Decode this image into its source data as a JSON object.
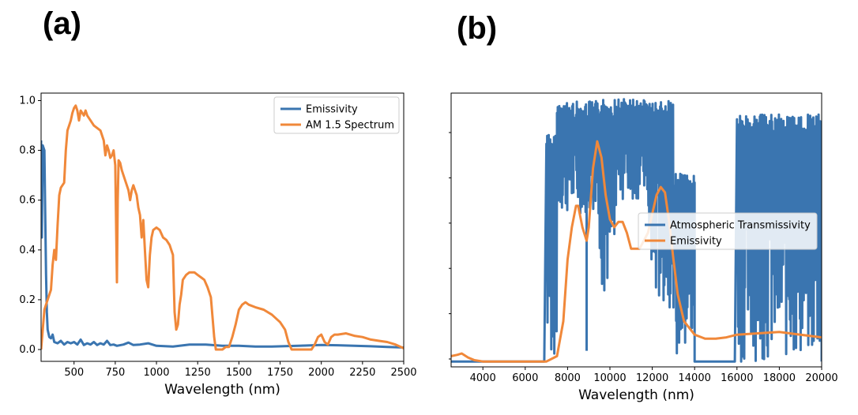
{
  "panels": {
    "a": {
      "label": "(a)"
    },
    "b": {
      "label": "(b)"
    }
  },
  "chart_data": [
    {
      "id": "a",
      "type": "line",
      "xlabel": "Wavelength (nm)",
      "ylabel": "",
      "xlim": [
        300,
        2500
      ],
      "ylim": [
        0,
        1.0
      ],
      "xticks": [
        500,
        750,
        1000,
        1250,
        1500,
        1750,
        2000,
        2250,
        2500
      ],
      "yticks": [
        0.0,
        0.2,
        0.4,
        0.6,
        0.8,
        1.0
      ],
      "xtick_labels": [
        "500",
        "750",
        "1000",
        "1250",
        "1500",
        "1750",
        "2000",
        "2250",
        "2500"
      ],
      "ytick_labels": [
        "0.0",
        "0.2",
        "0.4",
        "0.6",
        "0.8",
        "1.0"
      ],
      "legend_position": "top-right",
      "grid": false,
      "series": [
        {
          "name": "Emissivity",
          "color": "#3a75b0",
          "points": [
            [
              300,
              0.84
            ],
            [
              305,
              0.45
            ],
            [
              310,
              0.82
            ],
            [
              320,
              0.8
            ],
            [
              325,
              0.55
            ],
            [
              330,
              0.3
            ],
            [
              335,
              0.15
            ],
            [
              340,
              0.08
            ],
            [
              350,
              0.05
            ],
            [
              360,
              0.045
            ],
            [
              370,
              0.06
            ],
            [
              380,
              0.03
            ],
            [
              400,
              0.025
            ],
            [
              420,
              0.035
            ],
            [
              440,
              0.02
            ],
            [
              460,
              0.03
            ],
            [
              480,
              0.025
            ],
            [
              500,
              0.03
            ],
            [
              520,
              0.02
            ],
            [
              540,
              0.04
            ],
            [
              560,
              0.018
            ],
            [
              580,
              0.025
            ],
            [
              600,
              0.02
            ],
            [
              620,
              0.03
            ],
            [
              640,
              0.018
            ],
            [
              660,
              0.025
            ],
            [
              680,
              0.02
            ],
            [
              700,
              0.035
            ],
            [
              720,
              0.018
            ],
            [
              740,
              0.02
            ],
            [
              760,
              0.015
            ],
            [
              800,
              0.02
            ],
            [
              830,
              0.028
            ],
            [
              860,
              0.018
            ],
            [
              900,
              0.02
            ],
            [
              950,
              0.025
            ],
            [
              1000,
              0.015
            ],
            [
              1100,
              0.012
            ],
            [
              1200,
              0.02
            ],
            [
              1300,
              0.02
            ],
            [
              1400,
              0.015
            ],
            [
              1500,
              0.015
            ],
            [
              1600,
              0.012
            ],
            [
              1700,
              0.012
            ],
            [
              1800,
              0.014
            ],
            [
              1900,
              0.016
            ],
            [
              2000,
              0.018
            ],
            [
              2100,
              0.017
            ],
            [
              2200,
              0.015
            ],
            [
              2300,
              0.013
            ],
            [
              2400,
              0.01
            ],
            [
              2500,
              0.008
            ]
          ]
        },
        {
          "name": "AM 1.5 Spectrum",
          "color": "#f0883a",
          "points": [
            [
              300,
              0.0
            ],
            [
              310,
              0.08
            ],
            [
              320,
              0.16
            ],
            [
              340,
              0.2
            ],
            [
              360,
              0.24
            ],
            [
              370,
              0.34
            ],
            [
              380,
              0.4
            ],
            [
              390,
              0.36
            ],
            [
              400,
              0.5
            ],
            [
              410,
              0.62
            ],
            [
              420,
              0.65
            ],
            [
              440,
              0.67
            ],
            [
              450,
              0.8
            ],
            [
              460,
              0.88
            ],
            [
              470,
              0.9
            ],
            [
              480,
              0.92
            ],
            [
              490,
              0.95
            ],
            [
              500,
              0.97
            ],
            [
              510,
              0.98
            ],
            [
              520,
              0.96
            ],
            [
              530,
              0.92
            ],
            [
              540,
              0.96
            ],
            [
              550,
              0.95
            ],
            [
              560,
              0.94
            ],
            [
              570,
              0.96
            ],
            [
              580,
              0.94
            ],
            [
              600,
              0.92
            ],
            [
              620,
              0.9
            ],
            [
              640,
              0.89
            ],
            [
              660,
              0.88
            ],
            [
              680,
              0.84
            ],
            [
              690,
              0.78
            ],
            [
              700,
              0.82
            ],
            [
              710,
              0.8
            ],
            [
              720,
              0.77
            ],
            [
              730,
              0.78
            ],
            [
              740,
              0.8
            ],
            [
              750,
              0.74
            ],
            [
              760,
              0.27
            ],
            [
              765,
              0.6
            ],
            [
              770,
              0.76
            ],
            [
              780,
              0.75
            ],
            [
              790,
              0.72
            ],
            [
              800,
              0.7
            ],
            [
              820,
              0.66
            ],
            [
              830,
              0.64
            ],
            [
              840,
              0.6
            ],
            [
              850,
              0.64
            ],
            [
              860,
              0.66
            ],
            [
              870,
              0.64
            ],
            [
              880,
              0.62
            ],
            [
              890,
              0.57
            ],
            [
              900,
              0.54
            ],
            [
              910,
              0.45
            ],
            [
              920,
              0.52
            ],
            [
              930,
              0.4
            ],
            [
              940,
              0.28
            ],
            [
              950,
              0.25
            ],
            [
              960,
              0.38
            ],
            [
              970,
              0.45
            ],
            [
              980,
              0.48
            ],
            [
              1000,
              0.49
            ],
            [
              1020,
              0.48
            ],
            [
              1040,
              0.45
            ],
            [
              1060,
              0.44
            ],
            [
              1080,
              0.42
            ],
            [
              1100,
              0.38
            ],
            [
              1110,
              0.15
            ],
            [
              1120,
              0.08
            ],
            [
              1130,
              0.1
            ],
            [
              1140,
              0.18
            ],
            [
              1150,
              0.22
            ],
            [
              1160,
              0.28
            ],
            [
              1180,
              0.3
            ],
            [
              1200,
              0.31
            ],
            [
              1230,
              0.31
            ],
            [
              1250,
              0.3
            ],
            [
              1270,
              0.29
            ],
            [
              1290,
              0.28
            ],
            [
              1310,
              0.25
            ],
            [
              1330,
              0.21
            ],
            [
              1350,
              0.05
            ],
            [
              1360,
              0.0
            ],
            [
              1400,
              0.0
            ],
            [
              1420,
              0.01
            ],
            [
              1440,
              0.01
            ],
            [
              1460,
              0.05
            ],
            [
              1480,
              0.1
            ],
            [
              1500,
              0.16
            ],
            [
              1520,
              0.18
            ],
            [
              1540,
              0.19
            ],
            [
              1560,
              0.18
            ],
            [
              1600,
              0.17
            ],
            [
              1650,
              0.16
            ],
            [
              1700,
              0.14
            ],
            [
              1750,
              0.11
            ],
            [
              1780,
              0.08
            ],
            [
              1800,
              0.03
            ],
            [
              1820,
              0.0
            ],
            [
              1940,
              0.0
            ],
            [
              1960,
              0.02
            ],
            [
              1980,
              0.05
            ],
            [
              2000,
              0.06
            ],
            [
              2020,
              0.03
            ],
            [
              2040,
              0.02
            ],
            [
              2060,
              0.05
            ],
            [
              2080,
              0.06
            ],
            [
              2100,
              0.06
            ],
            [
              2150,
              0.065
            ],
            [
              2200,
              0.055
            ],
            [
              2250,
              0.05
            ],
            [
              2300,
              0.04
            ],
            [
              2350,
              0.035
            ],
            [
              2400,
              0.03
            ],
            [
              2450,
              0.02
            ],
            [
              2500,
              0.005
            ]
          ]
        }
      ]
    },
    {
      "id": "b",
      "type": "line",
      "xlabel": "Wavelength (nm)",
      "ylabel": "",
      "xlim": [
        2500,
        20000
      ],
      "ylim": [
        -0.02,
        1.0
      ],
      "xticks": [
        4000,
        6000,
        8000,
        10000,
        12000,
        14000,
        16000,
        18000,
        20000
      ],
      "xtick_labels": [
        "4000",
        "6000",
        "8000",
        "10000",
        "12000",
        "14000",
        "16000",
        "18000",
        "20000"
      ],
      "ytick_labels": [],
      "legend_position": "center-right",
      "grid": false,
      "series": [
        {
          "name": "Atmospheric Transmissivity",
          "color": "#3a75b0",
          "note_regions": [
            {
              "x_range": [
                7000,
                7500
              ],
              "low": 0.0,
              "high": 0.85
            },
            {
              "x_range": [
                7500,
                9500
              ],
              "low": 0.55,
              "high": 0.97
            },
            {
              "x_range": [
                9500,
                10300
              ],
              "low": 0.25,
              "high": 0.98
            },
            {
              "x_range": [
                10300,
                11800
              ],
              "low": 0.6,
              "high": 0.98
            },
            {
              "x_range": [
                11800,
                13000
              ],
              "low": 0.2,
              "high": 0.97
            },
            {
              "x_range": [
                13000,
                14000
              ],
              "low": 0.0,
              "high": 0.7
            },
            {
              "x_range": [
                16000,
                20000
              ],
              "low": 0.0,
              "high": 0.92
            }
          ],
          "baseline_points": [
            [
              2500,
              0.0
            ],
            [
              6900,
              0.0
            ],
            [
              7000,
              0.0
            ],
            [
              14000,
              0.0
            ],
            [
              15900,
              0.0
            ],
            [
              20000,
              0.0
            ]
          ],
          "dip_at": [
            [
              8900,
              0.04
            ]
          ]
        },
        {
          "name": "Emissivity",
          "color": "#f0883a",
          "points": [
            [
              2500,
              0.02
            ],
            [
              2800,
              0.025
            ],
            [
              3000,
              0.03
            ],
            [
              3300,
              0.015
            ],
            [
              3600,
              0.005
            ],
            [
              4000,
              0.0
            ],
            [
              5000,
              0.0
            ],
            [
              6000,
              0.0
            ],
            [
              7000,
              0.0
            ],
            [
              7500,
              0.02
            ],
            [
              7800,
              0.15
            ],
            [
              8000,
              0.38
            ],
            [
              8200,
              0.5
            ],
            [
              8400,
              0.58
            ],
            [
              8500,
              0.58
            ],
            [
              8700,
              0.5
            ],
            [
              8900,
              0.45
            ],
            [
              9000,
              0.5
            ],
            [
              9200,
              0.72
            ],
            [
              9400,
              0.82
            ],
            [
              9600,
              0.76
            ],
            [
              9800,
              0.62
            ],
            [
              10000,
              0.53
            ],
            [
              10200,
              0.5
            ],
            [
              10400,
              0.52
            ],
            [
              10600,
              0.52
            ],
            [
              10800,
              0.48
            ],
            [
              11000,
              0.42
            ],
            [
              11200,
              0.42
            ],
            [
              11400,
              0.42
            ],
            [
              11600,
              0.45
            ],
            [
              11800,
              0.48
            ],
            [
              12000,
              0.55
            ],
            [
              12200,
              0.62
            ],
            [
              12400,
              0.65
            ],
            [
              12600,
              0.63
            ],
            [
              12800,
              0.52
            ],
            [
              13000,
              0.38
            ],
            [
              13200,
              0.25
            ],
            [
              13500,
              0.15
            ],
            [
              14000,
              0.1
            ],
            [
              14500,
              0.085
            ],
            [
              15000,
              0.085
            ],
            [
              15500,
              0.09
            ],
            [
              16000,
              0.1
            ],
            [
              17000,
              0.105
            ],
            [
              18000,
              0.11
            ],
            [
              19000,
              0.1
            ],
            [
              20000,
              0.09
            ]
          ]
        }
      ]
    }
  ]
}
